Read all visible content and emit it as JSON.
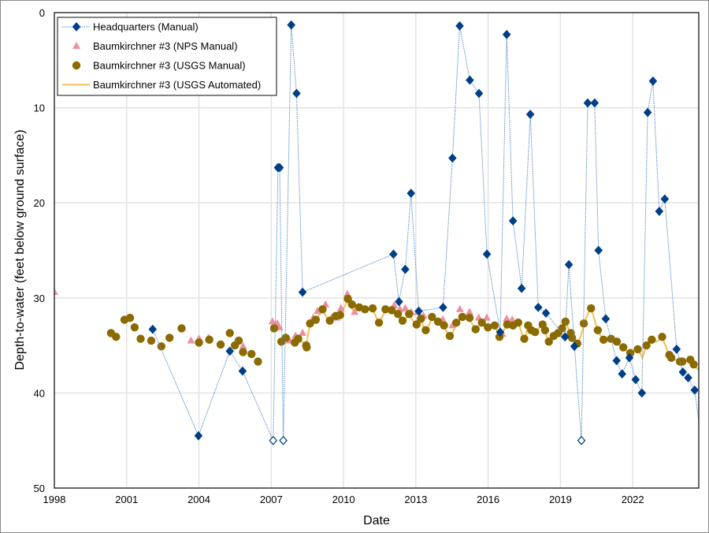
{
  "chart_data": {
    "type": "scatter",
    "title": "",
    "xlabel": "Date",
    "ylabel": "Depth-to-water (feet below ground surface)",
    "xlim": [
      1998,
      2024.74
    ],
    "ylim": [
      0,
      50
    ],
    "y_inverted": true,
    "x_ticks": [
      "1998",
      "2001",
      "2004",
      "2007",
      "2010",
      "2013",
      "2016",
      "2019",
      "2022"
    ],
    "y_ticks": [
      "0",
      "10",
      "20",
      "30",
      "40",
      "50"
    ],
    "grid": true,
    "legend_position": "top-left",
    "series": [
      {
        "name": "Headquarters (Manual)",
        "marker": "diamond",
        "line": "dotted",
        "color": "#003f87",
        "line_color": "#5b8fd0",
        "points": [
          [
            2002.08,
            33.3
          ],
          [
            2003.98,
            44.5
          ],
          [
            2005.28,
            35.6
          ],
          [
            2005.81,
            37.7
          ],
          [
            2007.08,
            45,
            "open"
          ],
          [
            2007.28,
            16.3
          ],
          [
            2007.35,
            16.3
          ],
          [
            2007.5,
            45,
            "open"
          ],
          [
            2007.83,
            1.3
          ],
          [
            2008.05,
            8.5
          ],
          [
            2008.3,
            29.4
          ],
          [
            2012.07,
            25.4
          ],
          [
            2012.3,
            30.4
          ],
          [
            2012.56,
            27.0
          ],
          [
            2012.8,
            19.0
          ],
          [
            2013.12,
            31.4
          ],
          [
            2014.13,
            31.0
          ],
          [
            2014.52,
            15.3
          ],
          [
            2014.82,
            1.4
          ],
          [
            2015.24,
            7.1
          ],
          [
            2015.62,
            8.5
          ],
          [
            2015.95,
            25.4
          ],
          [
            2016.5,
            33.6
          ],
          [
            2016.77,
            2.3
          ],
          [
            2017.03,
            21.9
          ],
          [
            2017.39,
            29.0
          ],
          [
            2017.75,
            10.7
          ],
          [
            2018.08,
            31.0
          ],
          [
            2018.4,
            31.6
          ],
          [
            2019.19,
            34.1
          ],
          [
            2019.35,
            26.5
          ],
          [
            2019.58,
            35.1
          ],
          [
            2019.87,
            45,
            "open"
          ],
          [
            2020.13,
            9.5
          ],
          [
            2020.42,
            9.5
          ],
          [
            2020.58,
            25.0
          ],
          [
            2020.88,
            32.2
          ],
          [
            2021.33,
            36.6
          ],
          [
            2021.56,
            38.0
          ],
          [
            2021.86,
            36.3
          ],
          [
            2022.12,
            38.6
          ],
          [
            2022.38,
            40.0
          ],
          [
            2022.62,
            10.5
          ],
          [
            2022.84,
            7.2
          ],
          [
            2023.1,
            20.9
          ],
          [
            2023.33,
            19.6
          ],
          [
            2023.82,
            35.4
          ],
          [
            2024.08,
            37.8
          ],
          [
            2024.3,
            38.4
          ],
          [
            2024.57,
            39.7
          ],
          [
            2024.9,
            46
          ]
        ]
      },
      {
        "name": "Baumkirchner #3 (NPS Manual)",
        "marker": "triangle",
        "color": "#ee8fa0",
        "points": [
          [
            1998.0,
            29.4
          ],
          [
            2003.67,
            34.5
          ],
          [
            2004.0,
            34.3
          ],
          [
            2004.4,
            34.2
          ],
          [
            2005.83,
            35.1
          ],
          [
            2007.05,
            32.5
          ],
          [
            2007.25,
            32.7
          ],
          [
            2007.33,
            33.1
          ],
          [
            2007.76,
            34.5
          ],
          [
            2008.01,
            34.0
          ],
          [
            2008.3,
            33.7
          ],
          [
            2008.74,
            32.1
          ],
          [
            2008.92,
            31.4
          ],
          [
            2009.25,
            30.7
          ],
          [
            2009.5,
            32.1
          ],
          [
            2009.72,
            32.1
          ],
          [
            2009.89,
            31.1
          ],
          [
            2010.16,
            29.6
          ],
          [
            2010.46,
            31.5
          ],
          [
            2012.1,
            30.8
          ],
          [
            2012.34,
            31.2
          ],
          [
            2012.56,
            31.1
          ],
          [
            2012.8,
            31.5
          ],
          [
            2013.08,
            31.5
          ],
          [
            2013.32,
            31.9
          ],
          [
            2014.12,
            32.3
          ],
          [
            2014.52,
            32.9
          ],
          [
            2014.83,
            31.2
          ],
          [
            2015.23,
            31.5
          ],
          [
            2015.61,
            32.1
          ],
          [
            2015.94,
            32.1
          ],
          [
            2016.59,
            33.8
          ],
          [
            2016.77,
            32.2
          ],
          [
            2017.0,
            32.3
          ]
        ]
      },
      {
        "name": "Baumkirchner #3 (USGS Manual)",
        "marker": "circle",
        "color": "#8b6a00",
        "points": [
          [
            2000.35,
            33.7
          ],
          [
            2000.56,
            34.1
          ],
          [
            2000.91,
            32.3
          ],
          [
            2001.14,
            32.1
          ],
          [
            2001.33,
            33.1
          ],
          [
            2001.58,
            34.3
          ],
          [
            2002.02,
            34.5
          ],
          [
            2002.44,
            35.1
          ],
          [
            2002.78,
            34.2
          ],
          [
            2003.28,
            33.2
          ],
          [
            2004.0,
            34.7
          ],
          [
            2004.43,
            34.4
          ],
          [
            2004.9,
            34.9
          ],
          [
            2005.28,
            33.7
          ],
          [
            2005.49,
            35.0
          ],
          [
            2005.65,
            34.5
          ],
          [
            2005.83,
            35.7
          ],
          [
            2006.18,
            35.9
          ],
          [
            2006.45,
            36.7
          ],
          [
            2007.12,
            33.2
          ],
          [
            2007.42,
            34.6
          ],
          [
            2007.6,
            34.2
          ],
          [
            2007.98,
            34.7
          ],
          [
            2008.12,
            34.3
          ],
          [
            2008.45,
            35.0
          ],
          [
            2008.47,
            35.2
          ],
          [
            2008.61,
            32.7
          ],
          [
            2008.85,
            32.3
          ],
          [
            2009.13,
            31.2
          ],
          [
            2009.43,
            32.4
          ],
          [
            2009.68,
            31.9
          ],
          [
            2009.86,
            31.8
          ],
          [
            2010.18,
            30.1
          ],
          [
            2010.35,
            30.7
          ],
          [
            2010.65,
            31.0
          ],
          [
            2010.89,
            31.2
          ],
          [
            2011.21,
            31.1
          ],
          [
            2011.47,
            32.6
          ],
          [
            2011.74,
            31.2
          ],
          [
            2012.0,
            31.3
          ],
          [
            2012.26,
            31.7
          ],
          [
            2012.45,
            32.4
          ],
          [
            2012.72,
            31.7
          ],
          [
            2013.03,
            32.8
          ],
          [
            2013.21,
            32.2
          ],
          [
            2013.41,
            33.4
          ],
          [
            2013.67,
            32.0
          ],
          [
            2013.92,
            32.5
          ],
          [
            2014.17,
            32.9
          ],
          [
            2014.41,
            34.0
          ],
          [
            2014.68,
            32.6
          ],
          [
            2014.93,
            32.0
          ],
          [
            2015.23,
            32.1
          ],
          [
            2015.48,
            33.3
          ],
          [
            2015.74,
            32.6
          ],
          [
            2015.99,
            33.1
          ],
          [
            2016.27,
            32.9
          ],
          [
            2016.47,
            34.1
          ],
          [
            2016.79,
            32.8
          ],
          [
            2017.03,
            32.9
          ],
          [
            2017.25,
            32.6
          ],
          [
            2017.5,
            34.3
          ],
          [
            2017.66,
            32.9
          ],
          [
            2017.79,
            33.4
          ],
          [
            2017.95,
            33.6
          ],
          [
            2018.26,
            32.8
          ],
          [
            2018.36,
            33.4
          ],
          [
            2018.52,
            34.6
          ],
          [
            2018.72,
            34.0
          ],
          [
            2018.9,
            33.7
          ],
          [
            2019.07,
            33.2
          ],
          [
            2019.21,
            32.5
          ],
          [
            2019.43,
            33.7
          ],
          [
            2019.48,
            34.2
          ],
          [
            2019.7,
            34.8
          ],
          [
            2019.97,
            32.7
          ],
          [
            2020.27,
            31.1
          ],
          [
            2020.55,
            33.4
          ],
          [
            2020.79,
            34.4
          ],
          [
            2021.1,
            34.3
          ],
          [
            2021.34,
            34.6
          ],
          [
            2021.61,
            35.2
          ],
          [
            2021.9,
            35.8
          ],
          [
            2022.21,
            35.4
          ],
          [
            2022.57,
            35.0
          ],
          [
            2022.79,
            34.4
          ],
          [
            2023.22,
            34.1
          ],
          [
            2023.52,
            36.0
          ],
          [
            2023.6,
            36.3
          ],
          [
            2023.96,
            36.7
          ],
          [
            2024.06,
            36.7
          ],
          [
            2024.39,
            36.5
          ],
          [
            2024.53,
            37.0
          ]
        ]
      },
      {
        "name": "Baumkirchner #3 (USGS Automated)",
        "marker": "none",
        "line": "solid",
        "color": "#f2c14e",
        "points": [
          [
            2007.6,
            34.4
          ],
          [
            2007.98,
            34.8
          ],
          [
            2008.2,
            34.4
          ],
          [
            2008.45,
            35.0
          ],
          [
            2008.6,
            32.8
          ],
          [
            2008.85,
            32.3
          ],
          [
            2009.13,
            31.3
          ],
          [
            2009.43,
            32.6
          ],
          [
            2009.68,
            31.9
          ],
          [
            2009.86,
            31.9
          ],
          [
            2010.18,
            30.2
          ],
          [
            2010.45,
            31.6
          ],
          [
            2010.65,
            31.1
          ],
          [
            2010.89,
            31.3
          ],
          [
            2011.21,
            31.2
          ],
          [
            2011.47,
            32.7
          ],
          [
            2011.74,
            31.3
          ],
          [
            2012.0,
            31.4
          ],
          [
            2012.26,
            31.8
          ],
          [
            2012.45,
            32.5
          ],
          [
            2012.72,
            31.8
          ],
          [
            2013.03,
            32.9
          ],
          [
            2013.21,
            32.3
          ],
          [
            2013.41,
            33.7
          ],
          [
            2013.67,
            32.1
          ],
          [
            2013.92,
            32.6
          ],
          [
            2014.17,
            33.0
          ],
          [
            2014.41,
            34.3
          ],
          [
            2014.68,
            32.7
          ],
          [
            2014.93,
            32.0
          ],
          [
            2015.23,
            32.2
          ],
          [
            2015.48,
            33.4
          ],
          [
            2015.74,
            32.6
          ],
          [
            2015.99,
            33.1
          ],
          [
            2016.27,
            33.0
          ],
          [
            2016.47,
            34.0
          ],
          [
            2016.79,
            32.9
          ],
          [
            2017.03,
            33.0
          ],
          [
            2017.25,
            32.6
          ],
          [
            2017.5,
            34.5
          ],
          [
            2017.66,
            33.0
          ],
          [
            2017.95,
            33.7
          ],
          [
            2018.26,
            32.7
          ],
          [
            2018.52,
            34.8
          ],
          [
            2018.72,
            34.0
          ],
          [
            2019.07,
            33.2
          ],
          [
            2019.21,
            32.4
          ],
          [
            2019.48,
            34.3
          ],
          [
            2019.7,
            35.0
          ],
          [
            2019.85,
            34.0
          ],
          [
            2019.97,
            32.8
          ],
          [
            2020.15,
            31.6
          ],
          [
            2020.27,
            31.0
          ],
          [
            2020.55,
            33.5
          ],
          [
            2020.79,
            34.5
          ],
          [
            2021.1,
            34.3
          ],
          [
            2021.34,
            34.7
          ],
          [
            2021.61,
            35.3
          ],
          [
            2021.9,
            35.9
          ],
          [
            2022.21,
            35.3
          ],
          [
            2022.4,
            36.3
          ],
          [
            2022.57,
            35.0
          ],
          [
            2022.79,
            34.5
          ],
          [
            2023.0,
            34.6
          ],
          [
            2023.22,
            34.1
          ],
          [
            2023.52,
            36.1
          ],
          [
            2023.96,
            36.8
          ],
          [
            2024.39,
            36.5
          ],
          [
            2024.53,
            37.0
          ],
          [
            2024.74,
            37.6
          ]
        ]
      }
    ]
  }
}
